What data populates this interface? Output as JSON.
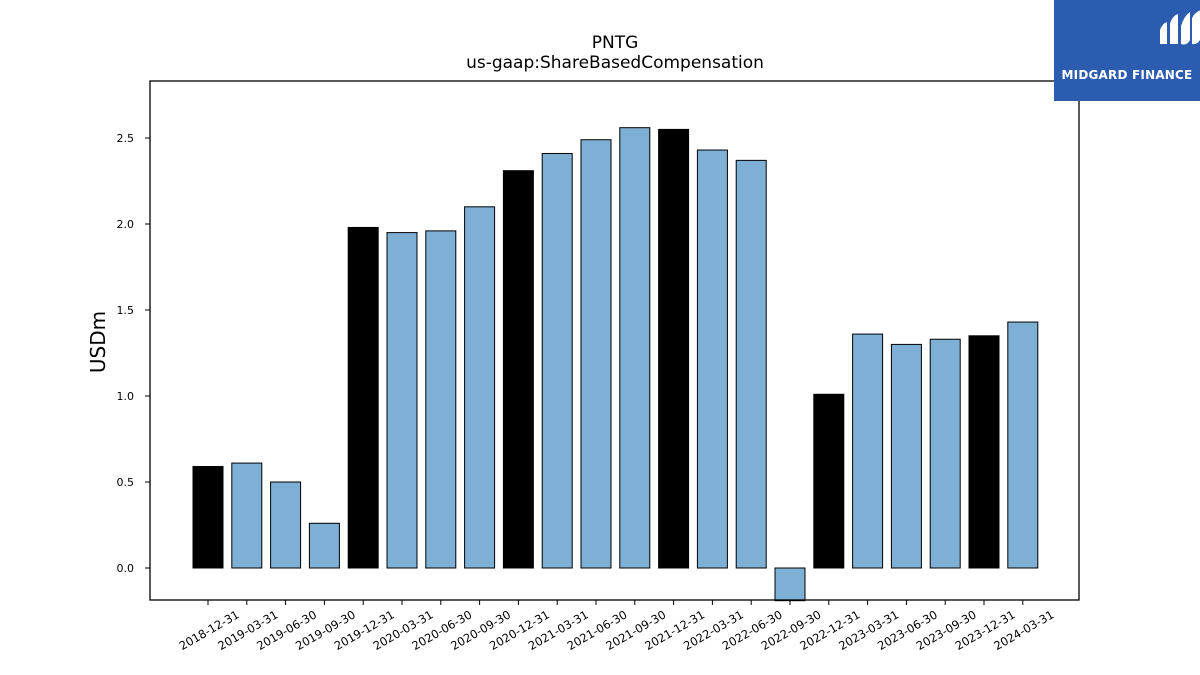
{
  "chart_data": {
    "type": "bar",
    "title": "PNTG",
    "subtitle": "us-gaap:ShareBasedCompensation",
    "ylabel": "USDm",
    "xlabel": "",
    "ylim": [
      -0.19,
      2.83
    ],
    "yticks": [
      "0.0",
      "0.5",
      "1.0",
      "1.5",
      "2.0",
      "2.5"
    ],
    "categories": [
      "2018-12-31",
      "2019-03-31",
      "2019-06-30",
      "2019-09-30",
      "2019-12-31",
      "2020-03-31",
      "2020-06-30",
      "2020-09-30",
      "2020-12-31",
      "2021-03-31",
      "2021-06-30",
      "2021-09-30",
      "2021-12-31",
      "2022-03-31",
      "2022-06-30",
      "2022-09-30",
      "2022-12-31",
      "2023-03-31",
      "2023-06-30",
      "2023-09-30",
      "2023-12-31",
      "2024-03-31"
    ],
    "values": [
      0.59,
      0.61,
      0.5,
      0.26,
      1.98,
      1.95,
      1.96,
      2.1,
      2.31,
      2.41,
      2.49,
      2.56,
      2.55,
      2.43,
      2.37,
      -0.19,
      1.01,
      1.36,
      1.3,
      1.33,
      1.35,
      1.43
    ],
    "year_end": [
      true,
      false,
      false,
      false,
      true,
      false,
      false,
      false,
      true,
      false,
      false,
      false,
      true,
      false,
      false,
      false,
      true,
      false,
      false,
      false,
      true,
      false
    ],
    "colors": {
      "quarter": "#7eb0d5",
      "year_end": "#000000",
      "edge": "#000000"
    },
    "grid": false,
    "legend": "none"
  },
  "brand": {
    "name": "MIDGARD FINANCE",
    "background": "#2b5cb0",
    "icon": "midgard-logo-icon"
  }
}
